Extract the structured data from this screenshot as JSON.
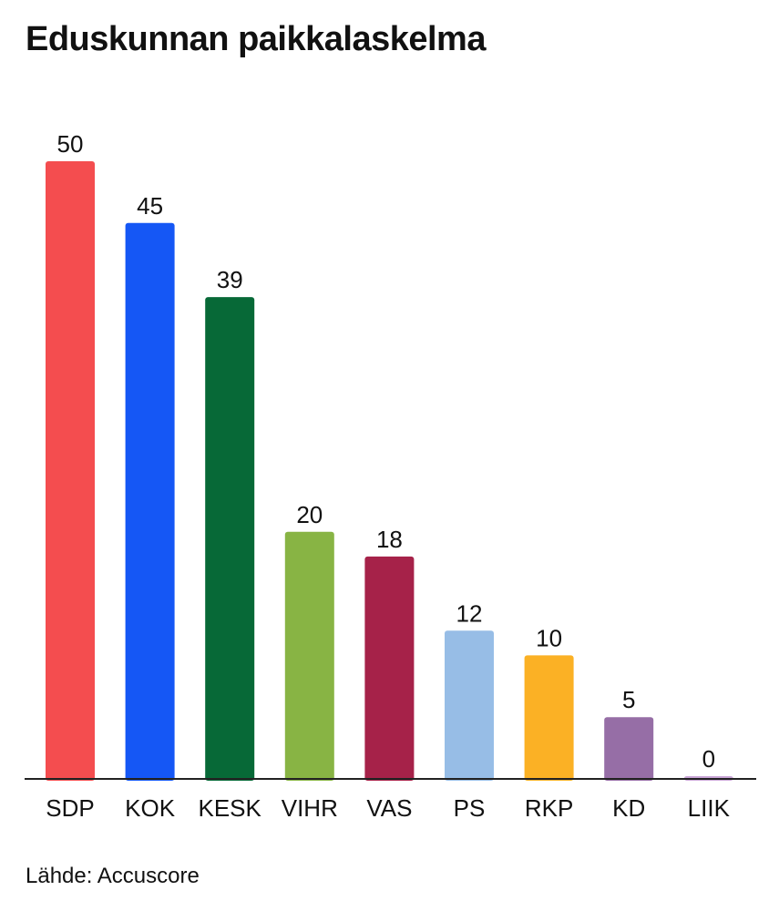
{
  "chart_data": {
    "type": "bar",
    "title": "Eduskunnan paikkalaskelma",
    "categories": [
      "SDP",
      "KOK",
      "KESK",
      "VIHR",
      "VAS",
      "PS",
      "RKP",
      "KD",
      "LIIK"
    ],
    "values": [
      50,
      45,
      39,
      20,
      18,
      12,
      10,
      5,
      0
    ],
    "colors": [
      "#f44d4f",
      "#1557f5",
      "#076937",
      "#88b444",
      "#a62249",
      "#97bde6",
      "#fbb125",
      "#966ea6",
      "#c9a5d6"
    ],
    "xlabel": "",
    "ylabel": "",
    "ylim": [
      0,
      50
    ],
    "grid": false,
    "legend": "none"
  },
  "source": "Lähde: Accuscore"
}
